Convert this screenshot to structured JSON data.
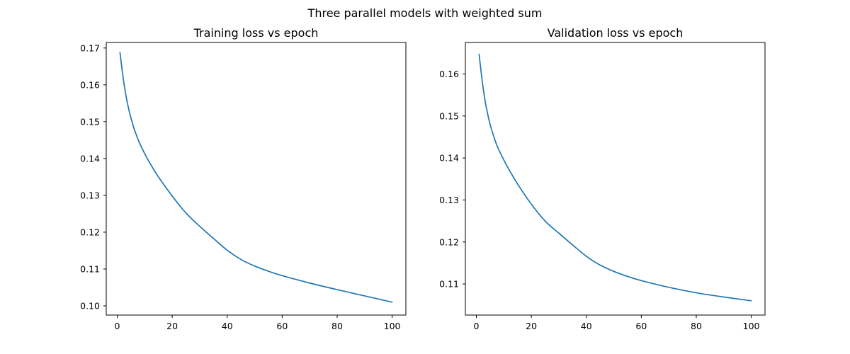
{
  "figure": {
    "title": "Three parallel models with weighted sum"
  },
  "chart_data": [
    {
      "type": "line",
      "title": "Training loss vs epoch",
      "xlabel": "",
      "ylabel": "",
      "xlim": [
        -4,
        105
      ],
      "ylim": [
        0.0975,
        0.1715
      ],
      "xticks": [
        0,
        20,
        40,
        60,
        80,
        100
      ],
      "xtick_labels": [
        "0",
        "20",
        "40",
        "60",
        "80",
        "100"
      ],
      "yticks": [
        0.1,
        0.11,
        0.12,
        0.13,
        0.14,
        0.15,
        0.16,
        0.17
      ],
      "ytick_labels": [
        "0.10",
        "0.11",
        "0.12",
        "0.13",
        "0.14",
        "0.15",
        "0.16",
        "0.17"
      ],
      "grid": false,
      "color": "#1f77b4",
      "series": [
        {
          "x": [
            1,
            2,
            3,
            4,
            5,
            6,
            7,
            8,
            10,
            12,
            15,
            20,
            25,
            30,
            35,
            40,
            45,
            50,
            55,
            60,
            70,
            80,
            90,
            100
          ],
          "values": [
            0.1688,
            0.1627,
            0.1578,
            0.154,
            0.151,
            0.1484,
            0.1463,
            0.1444,
            0.1413,
            0.1386,
            0.135,
            0.1298,
            0.1252,
            0.1216,
            0.1183,
            0.1151,
            0.1126,
            0.1108,
            0.1094,
            0.1082,
            0.1062,
            0.1044,
            0.1027,
            0.101
          ]
        }
      ]
    },
    {
      "type": "line",
      "title": "Validation loss vs epoch",
      "xlabel": "",
      "ylabel": "",
      "xlim": [
        -4,
        105
      ],
      "ylim": [
        1026,
        0.1675
      ],
      "xticks": [
        0,
        20,
        40,
        60,
        80,
        100
      ],
      "xtick_labels": [
        "0",
        "20",
        "40",
        "60",
        "80",
        "100"
      ],
      "yticks": [
        0.11,
        0.12,
        0.13,
        0.14,
        0.15,
        0.16
      ],
      "ytick_labels": [
        "0.11",
        "0.12",
        "0.13",
        "0.14",
        "0.15",
        "0.16"
      ],
      "grid": false,
      "color": "#1f77b4",
      "series": [
        {
          "x": [
            1,
            2,
            3,
            4,
            5,
            6,
            7,
            8,
            10,
            12,
            15,
            20,
            25,
            30,
            35,
            40,
            45,
            50,
            55,
            60,
            70,
            80,
            90,
            100
          ],
          "values": [
            0.1647,
            0.159,
            0.1543,
            0.1508,
            0.148,
            0.1458,
            0.1438,
            0.1422,
            0.1395,
            0.1371,
            0.1338,
            0.129,
            0.125,
            0.1221,
            0.1193,
            0.1166,
            0.1145,
            0.113,
            0.1118,
            0.1108,
            0.1092,
            0.1079,
            0.1069,
            0.106
          ]
        }
      ]
    }
  ]
}
